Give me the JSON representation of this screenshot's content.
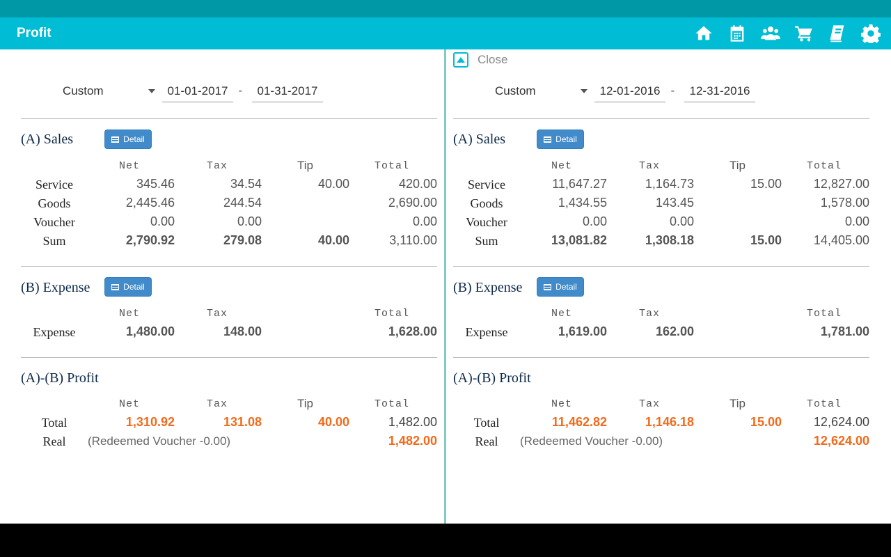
{
  "app": {
    "title": "Profit"
  },
  "toolbar": {
    "icons": [
      "home-icon",
      "calendar-icon",
      "users-icon",
      "cart-icon",
      "book-icon",
      "gear-icon"
    ]
  },
  "colors": {
    "app_bar": "#00bcd4",
    "status_bar": "#0097a7",
    "accent_orange": "#f26a1b",
    "button_blue": "#428bca"
  },
  "close_label": "Close",
  "detail_label": "Detail",
  "headers": {
    "net": "Net",
    "tax": "Tax",
    "tip": "Tip",
    "total": "Total"
  },
  "labels": {
    "sales": "(A) Sales",
    "expense": "(B) Expense",
    "profit": "(A)-(B) Profit",
    "service": "Service",
    "goods": "Goods",
    "voucher": "Voucher",
    "sum": "Sum",
    "expense_row": "Expense",
    "total_row": "Total",
    "real_row": "Real"
  },
  "left": {
    "range": "Custom",
    "from": "01-01-2017",
    "to": "01-31-2017",
    "sales": {
      "service": {
        "net": "345.46",
        "tax": "34.54",
        "tip": "40.00",
        "total": "420.00"
      },
      "goods": {
        "net": "2,445.46",
        "tax": "244.54",
        "total": "2,690.00"
      },
      "voucher": {
        "net": "0.00",
        "tax": "0.00",
        "total": "0.00"
      },
      "sum": {
        "net": "2,790.92",
        "tax": "279.08",
        "tip": "40.00",
        "total": "3,110.00"
      }
    },
    "expense": {
      "net": "1,480.00",
      "tax": "148.00",
      "total": "1,628.00"
    },
    "profit": {
      "total": {
        "net": "1,310.92",
        "tax": "131.08",
        "tip": "40.00",
        "total": "1,482.00"
      },
      "real_note": "(Redeemed Voucher -0.00)",
      "real_total": "1,482.00"
    }
  },
  "right": {
    "range": "Custom",
    "from": "12-01-2016",
    "to": "12-31-2016",
    "sales": {
      "service": {
        "net": "11,647.27",
        "tax": "1,164.73",
        "tip": "15.00",
        "total": "12,827.00"
      },
      "goods": {
        "net": "1,434.55",
        "tax": "143.45",
        "total": "1,578.00"
      },
      "voucher": {
        "net": "0.00",
        "tax": "0.00",
        "total": "0.00"
      },
      "sum": {
        "net": "13,081.82",
        "tax": "1,308.18",
        "tip": "15.00",
        "total": "14,405.00"
      }
    },
    "expense": {
      "net": "1,619.00",
      "tax": "162.00",
      "total": "1,781.00"
    },
    "profit": {
      "total": {
        "net": "11,462.82",
        "tax": "1,146.18",
        "tip": "15.00",
        "total": "12,624.00"
      },
      "real_note": "(Redeemed Voucher -0.00)",
      "real_total": "12,624.00"
    }
  }
}
